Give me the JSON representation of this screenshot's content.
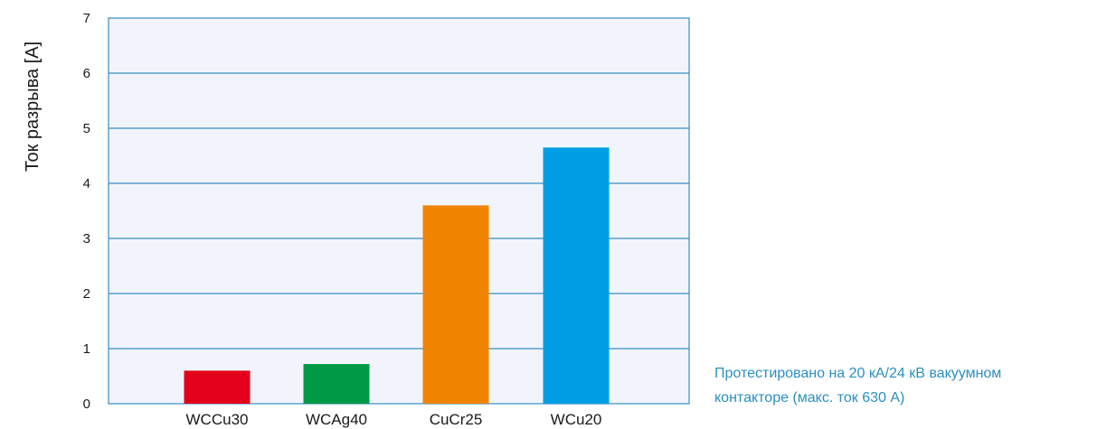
{
  "chart_data": {
    "type": "bar",
    "categories": [
      "WCCu30",
      "WCAg40",
      "CuCr25",
      "WCu20"
    ],
    "values": [
      0.6,
      0.72,
      3.6,
      4.65
    ],
    "colors": [
      "#e3001b",
      "#009a44",
      "#f08400",
      "#009fe3"
    ],
    "ylabel": "Ток разрыва [A]",
    "ylim": [
      0,
      7
    ],
    "yticks": [
      0,
      1,
      2,
      3,
      4,
      5,
      6,
      7
    ],
    "grid": true,
    "plot_background": "#f1f5fb",
    "grid_color": "#3a8cc4"
  },
  "note": {
    "line1": "Протестировано на 20 кА/24 кВ  вакуумном",
    "line2": "контакторе (макс. ток 630 А)"
  }
}
